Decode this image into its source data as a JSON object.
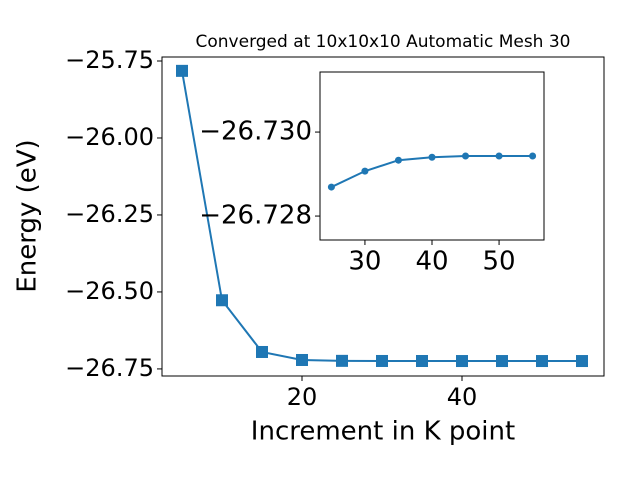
{
  "chart_data": [
    {
      "type": "line",
      "title": "Converged at 10x10x10 Automatic Mesh 30",
      "x_label": "Increment in K point",
      "y_label": "Energy (eV)",
      "x": [
        5,
        10,
        15,
        20,
        25,
        30,
        35,
        40,
        45,
        50,
        55
      ],
      "series": [
        {
          "color": "#1f77b4",
          "marker": "square",
          "values": [
            -25.782,
            -26.527,
            -26.695,
            -26.721,
            -26.7238,
            -26.7242,
            -26.7243,
            -26.7244,
            -26.7244,
            -26.7244,
            -26.7244
          ]
        }
      ],
      "xlim": [
        2.5,
        57.75
      ],
      "ylim": [
        -26.773,
        -25.737
      ],
      "xticks": [
        20,
        40
      ],
      "yticks": [
        {
          "value": -25.75,
          "label": "−25.75"
        },
        {
          "value": -26.0,
          "label": "−26.00"
        },
        {
          "value": -26.25,
          "label": "−26.25"
        },
        {
          "value": -26.5,
          "label": "−26.50"
        },
        {
          "value": -26.75,
          "label": "−26.75"
        }
      ]
    },
    {
      "type": "line",
      "x": [
        25,
        30,
        35,
        40,
        45,
        50,
        55
      ],
      "series": [
        {
          "color": "#1f77b4",
          "marker": "circle",
          "values": [
            -26.72869,
            -26.72907,
            -26.72933,
            -26.7294,
            -26.72943,
            -26.72943,
            -26.72943
          ]
        }
      ],
      "xlim": [
        23.3,
        56.7
      ],
      "ylim": [
        -26.72743,
        -26.73143
      ],
      "xticks": [
        30,
        40,
        50
      ],
      "yticks": [
        {
          "value": -26.73,
          "label": "−26.730"
        },
        {
          "value": -26.728,
          "label": "−26.728"
        }
      ]
    }
  ]
}
